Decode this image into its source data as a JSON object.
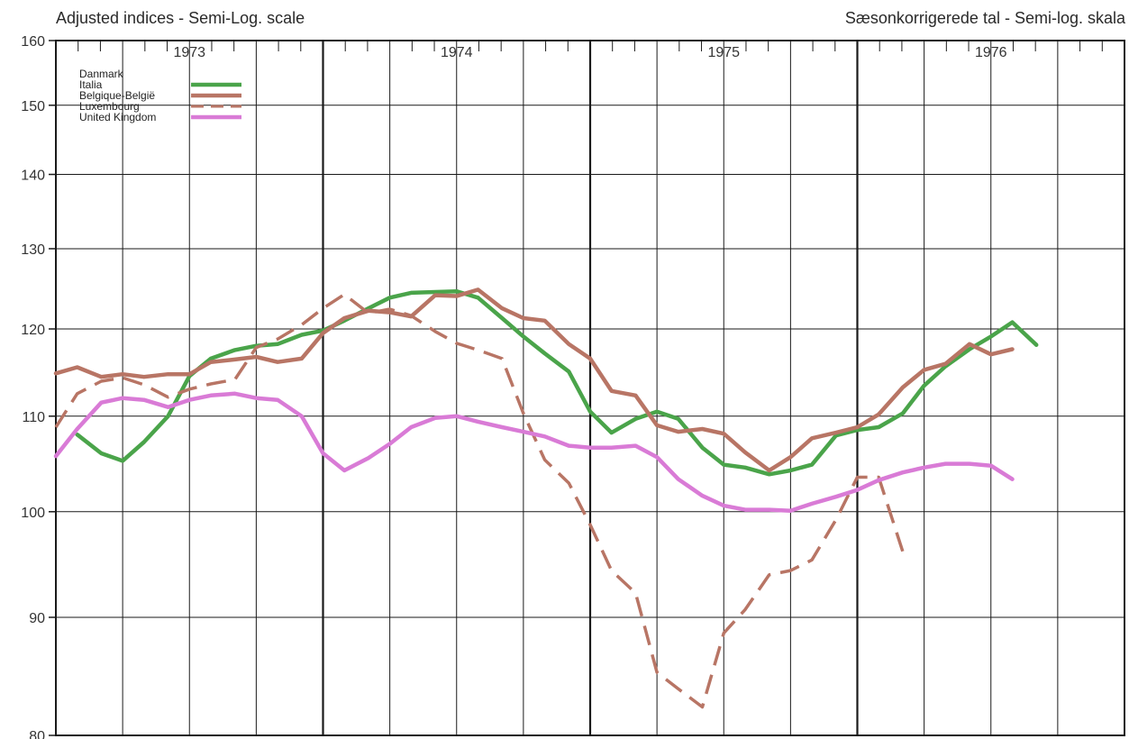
{
  "header": {
    "title_left": "Adjusted indices - Semi-Log. scale",
    "title_right": "Sæsonkorrigerede tal - Semi-log. skala"
  },
  "chart_data": {
    "type": "line",
    "yscale": "log",
    "ylim": [
      80,
      160
    ],
    "yticks": [
      80,
      90,
      100,
      110,
      120,
      130,
      140,
      150,
      160
    ],
    "x_range": [
      1973.0,
      1977.0
    ],
    "years": [
      {
        "label": "1973",
        "x": 1973.0
      },
      {
        "label": "1974",
        "x": 1974.0
      },
      {
        "label": "1975",
        "x": 1975.0
      },
      {
        "label": "1976",
        "x": 1976.0
      }
    ],
    "grid": true,
    "legend_position": "top-left",
    "series": [
      {
        "name": "Danmark",
        "color": "#4aa44a",
        "style": "solid",
        "visible": false,
        "points": []
      },
      {
        "name": "Italia",
        "color": "#4aa44a",
        "style": "solid",
        "visible": true,
        "points": [
          [
            1973.08,
            108
          ],
          [
            1973.17,
            106
          ],
          [
            1973.25,
            105.2
          ],
          [
            1973.33,
            107.2
          ],
          [
            1973.42,
            110
          ],
          [
            1973.5,
            114.5
          ],
          [
            1973.58,
            116.5
          ],
          [
            1973.67,
            117.5
          ],
          [
            1973.75,
            118
          ],
          [
            1973.83,
            118.2
          ],
          [
            1973.92,
            119.3
          ],
          [
            1974.0,
            119.8
          ],
          [
            1974.08,
            121
          ],
          [
            1974.17,
            122.5
          ],
          [
            1974.25,
            123.8
          ],
          [
            1974.33,
            124.4
          ],
          [
            1974.42,
            124.5
          ],
          [
            1974.5,
            124.6
          ],
          [
            1974.58,
            123.8
          ],
          [
            1974.67,
            121.3
          ],
          [
            1974.75,
            119.1
          ],
          [
            1974.83,
            117.1
          ],
          [
            1974.92,
            115
          ],
          [
            1975.0,
            110.5
          ],
          [
            1975.08,
            108.2
          ],
          [
            1975.17,
            109.7
          ],
          [
            1975.25,
            110.5
          ],
          [
            1975.33,
            109.7
          ],
          [
            1975.42,
            106.6
          ],
          [
            1975.5,
            104.8
          ],
          [
            1975.58,
            104.5
          ],
          [
            1975.67,
            103.8
          ],
          [
            1975.75,
            104.2
          ],
          [
            1975.83,
            104.8
          ],
          [
            1975.92,
            107.9
          ],
          [
            1976.0,
            108.5
          ],
          [
            1976.08,
            108.8
          ],
          [
            1976.17,
            110.3
          ],
          [
            1976.25,
            113.4
          ],
          [
            1976.33,
            115.6
          ],
          [
            1976.42,
            117.6
          ],
          [
            1976.5,
            119.1
          ],
          [
            1976.58,
            120.8
          ],
          [
            1976.67,
            118.1
          ]
        ]
      },
      {
        "name": "Belgique-België",
        "color": "#b87565",
        "style": "solid",
        "visible": true,
        "points": [
          [
            1973.0,
            114.8
          ],
          [
            1973.08,
            115.5
          ],
          [
            1973.17,
            114.4
          ],
          [
            1973.25,
            114.7
          ],
          [
            1973.33,
            114.4
          ],
          [
            1973.42,
            114.7
          ],
          [
            1973.5,
            114.7
          ],
          [
            1973.58,
            116.1
          ],
          [
            1973.67,
            116.4
          ],
          [
            1973.75,
            116.7
          ],
          [
            1973.83,
            116.1
          ],
          [
            1973.92,
            116.5
          ],
          [
            1974.0,
            119.5
          ],
          [
            1974.08,
            121.3
          ],
          [
            1974.17,
            122.2
          ],
          [
            1974.25,
            122
          ],
          [
            1974.33,
            121.5
          ],
          [
            1974.42,
            124.1
          ],
          [
            1974.5,
            124
          ],
          [
            1974.58,
            124.8
          ],
          [
            1974.67,
            122.5
          ],
          [
            1974.75,
            121.3
          ],
          [
            1974.83,
            121
          ],
          [
            1974.92,
            118.2
          ],
          [
            1975.0,
            116.5
          ],
          [
            1975.08,
            112.8
          ],
          [
            1975.17,
            112.3
          ],
          [
            1975.25,
            109
          ],
          [
            1975.33,
            108.3
          ],
          [
            1975.42,
            108.6
          ],
          [
            1975.5,
            108.1
          ],
          [
            1975.58,
            106.1
          ],
          [
            1975.67,
            104.2
          ],
          [
            1975.75,
            105.6
          ],
          [
            1975.83,
            107.6
          ],
          [
            1975.92,
            108.2
          ],
          [
            1976.0,
            108.8
          ],
          [
            1976.08,
            110.2
          ],
          [
            1976.17,
            113.2
          ],
          [
            1976.25,
            115.2
          ],
          [
            1976.33,
            115.9
          ],
          [
            1976.42,
            118.2
          ],
          [
            1976.5,
            117
          ],
          [
            1976.58,
            117.6
          ]
        ]
      },
      {
        "name": "Luxembourg",
        "color": "#b87565",
        "style": "dashed",
        "visible": true,
        "points": [
          [
            1973.0,
            108.8
          ],
          [
            1973.08,
            112.5
          ],
          [
            1973.17,
            113.9
          ],
          [
            1973.25,
            114.3
          ],
          [
            1973.33,
            113.5
          ],
          [
            1973.42,
            112.1
          ],
          [
            1973.5,
            113
          ],
          [
            1973.58,
            113.6
          ],
          [
            1973.67,
            114.1
          ],
          [
            1973.75,
            117.8
          ],
          [
            1973.83,
            118.8
          ],
          [
            1973.92,
            120.5
          ],
          [
            1974.0,
            122.5
          ],
          [
            1974.08,
            124.2
          ],
          [
            1974.17,
            121.9
          ],
          [
            1974.25,
            122.4
          ],
          [
            1974.33,
            121.6
          ],
          [
            1974.42,
            119.7
          ],
          [
            1974.5,
            118.3
          ],
          [
            1974.58,
            117.5
          ],
          [
            1974.67,
            116.5
          ],
          [
            1974.75,
            110.3
          ],
          [
            1974.83,
            105.3
          ],
          [
            1974.92,
            102.9
          ],
          [
            1975.0,
            98.7
          ],
          [
            1975.08,
            94.3
          ],
          [
            1975.17,
            92.2
          ],
          [
            1975.25,
            85.2
          ],
          [
            1975.33,
            83.8
          ],
          [
            1975.42,
            82.3
          ],
          [
            1975.5,
            88.6
          ],
          [
            1975.58,
            90.7
          ],
          [
            1975.67,
            93.9
          ],
          [
            1975.75,
            94.3
          ],
          [
            1975.83,
            95.3
          ],
          [
            1975.92,
            99.2
          ],
          [
            1976.0,
            103.5
          ],
          [
            1976.08,
            103.5
          ],
          [
            1976.17,
            96.1
          ]
        ]
      },
      {
        "name": "United Kingdom",
        "color": "#d97bd6",
        "style": "solid",
        "visible": true,
        "points": [
          [
            1973.0,
            105.7
          ],
          [
            1973.08,
            108.6
          ],
          [
            1973.17,
            111.5
          ],
          [
            1973.25,
            112
          ],
          [
            1973.33,
            111.8
          ],
          [
            1973.42,
            111
          ],
          [
            1973.5,
            111.8
          ],
          [
            1973.58,
            112.3
          ],
          [
            1973.67,
            112.5
          ],
          [
            1973.75,
            112
          ],
          [
            1973.83,
            111.8
          ],
          [
            1973.92,
            110
          ],
          [
            1974.0,
            106
          ],
          [
            1974.08,
            104.2
          ],
          [
            1974.17,
            105.5
          ],
          [
            1974.25,
            107
          ],
          [
            1974.33,
            108.8
          ],
          [
            1974.42,
            109.8
          ],
          [
            1974.5,
            110
          ],
          [
            1974.58,
            109.4
          ],
          [
            1974.67,
            108.8
          ],
          [
            1974.75,
            108.3
          ],
          [
            1974.83,
            107.8
          ],
          [
            1974.92,
            106.8
          ],
          [
            1975.0,
            106.6
          ],
          [
            1975.08,
            106.6
          ],
          [
            1975.17,
            106.8
          ],
          [
            1975.25,
            105.6
          ],
          [
            1975.33,
            103.3
          ],
          [
            1975.42,
            101.6
          ],
          [
            1975.5,
            100.6
          ],
          [
            1975.58,
            100.2
          ],
          [
            1975.67,
            100.2
          ],
          [
            1975.75,
            100.1
          ],
          [
            1975.83,
            100.8
          ],
          [
            1975.92,
            101.5
          ],
          [
            1976.0,
            102.2
          ],
          [
            1976.08,
            103.2
          ],
          [
            1976.17,
            104
          ],
          [
            1976.25,
            104.5
          ],
          [
            1976.33,
            104.9
          ],
          [
            1976.42,
            104.9
          ],
          [
            1976.5,
            104.7
          ],
          [
            1976.58,
            103.3
          ]
        ]
      }
    ]
  }
}
